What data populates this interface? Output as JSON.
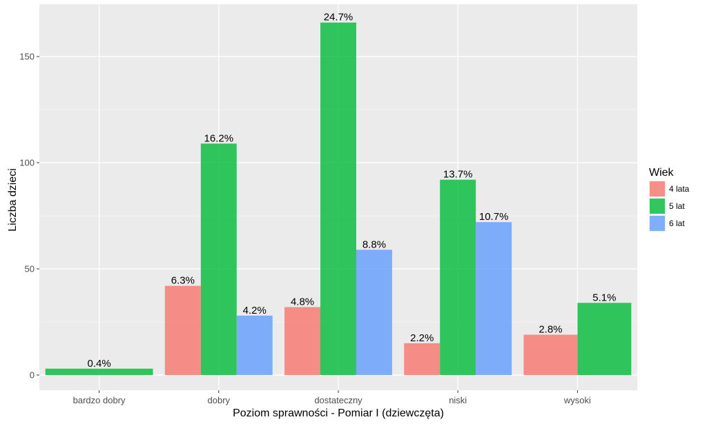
{
  "chart_data": {
    "type": "bar",
    "xlabel": "Poziom sprawności - Pomiar I (dziewczęta)",
    "ylabel": "Liczba dzieci",
    "ylim": [
      0,
      172
    ],
    "yticks": [
      0,
      50,
      100,
      150
    ],
    "grid": true,
    "legend": {
      "title": "Wiek",
      "position": "right"
    },
    "categories": [
      "bardzo dobry",
      "dobry",
      "dostateczny",
      "niski",
      "wysoki"
    ],
    "groups": [
      {
        "category": "bardzo dobry",
        "bars": [
          {
            "series": "5 lat",
            "value": 3,
            "label": "0.4%"
          }
        ]
      },
      {
        "category": "dobry",
        "bars": [
          {
            "series": "4 lata",
            "value": 42,
            "label": "6.3%"
          },
          {
            "series": "5 lat",
            "value": 109,
            "label": "16.2%"
          },
          {
            "series": "6 lat",
            "value": 28,
            "label": "4.2%"
          }
        ]
      },
      {
        "category": "dostateczny",
        "bars": [
          {
            "series": "4 lata",
            "value": 32,
            "label": "4.8%"
          },
          {
            "series": "5 lat",
            "value": 166,
            "label": "24.7%"
          },
          {
            "series": "6 lat",
            "value": 59,
            "label": "8.8%"
          }
        ]
      },
      {
        "category": "niski",
        "bars": [
          {
            "series": "4 lata",
            "value": 15,
            "label": "2.2%"
          },
          {
            "series": "5 lat",
            "value": 92,
            "label": "13.7%"
          },
          {
            "series": "6 lat",
            "value": 72,
            "label": "10.7%"
          }
        ]
      },
      {
        "category": "wysoki",
        "bars": [
          {
            "series": "4 lata",
            "value": 19,
            "label": "2.8%"
          },
          {
            "series": "5 lat",
            "value": 34,
            "label": "5.1%"
          }
        ]
      }
    ],
    "series": [
      {
        "name": "4 lata",
        "color": "#F8766D"
      },
      {
        "name": "5 lat",
        "color": "#00BA38"
      },
      {
        "name": "6 lat",
        "color": "#619CFF"
      }
    ]
  }
}
